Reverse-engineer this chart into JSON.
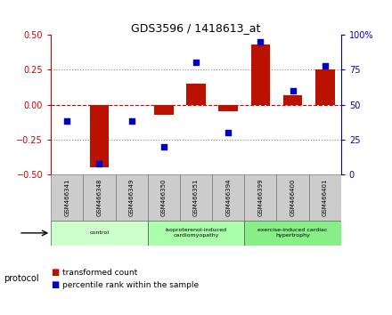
{
  "title": "GDS3596 / 1418613_at",
  "samples": [
    "GSM466341",
    "GSM466348",
    "GSM466349",
    "GSM466350",
    "GSM466351",
    "GSM466394",
    "GSM466399",
    "GSM466400",
    "GSM466401"
  ],
  "bar_values": [
    0.0,
    -0.45,
    0.0,
    -0.07,
    0.15,
    -0.05,
    0.43,
    0.07,
    0.25
  ],
  "dot_values": [
    38,
    8,
    38,
    20,
    80,
    30,
    95,
    60,
    78
  ],
  "bar_color": "#bb1100",
  "dot_color": "#0000cc",
  "ylim_left": [
    -0.5,
    0.5
  ],
  "ylim_right": [
    0,
    100
  ],
  "yticks_left": [
    -0.5,
    -0.25,
    0.0,
    0.25,
    0.5
  ],
  "yticks_right": [
    0,
    25,
    50,
    75,
    100
  ],
  "ytick_labels_right": [
    "0",
    "25",
    "50",
    "75",
    "100%"
  ],
  "hlines_dotted": [
    -0.25,
    0.25
  ],
  "hline_zero_color": "#cc0000",
  "groups": [
    {
      "label": "control",
      "start": 0,
      "end": 3,
      "color": "#ccffcc"
    },
    {
      "label": "isoproterenol-induced\ncardiomyopathy",
      "start": 3,
      "end": 6,
      "color": "#aaffaa"
    },
    {
      "label": "exercise-induced cardiac\nhypertrophy",
      "start": 6,
      "end": 9,
      "color": "#88ee88"
    }
  ],
  "protocol_label": "protocol",
  "legend_bar_label": "transformed count",
  "legend_dot_label": "percentile rank within the sample",
  "bar_width": 0.6,
  "background_plot": "#ffffff",
  "tick_color_left": "#cc0000",
  "tick_color_right": "#0000bb",
  "sample_box_color": "#cccccc",
  "figsize": [
    4.4,
    3.54
  ],
  "dpi": 100
}
